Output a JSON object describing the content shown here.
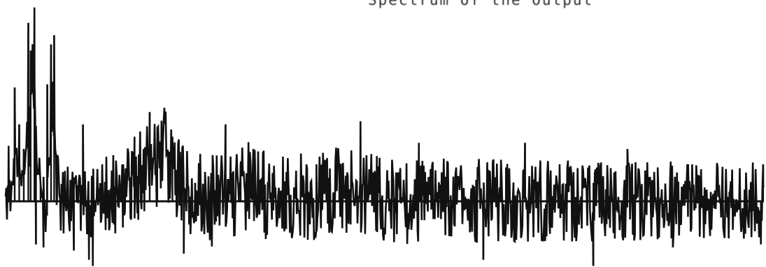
{
  "chart_data": {
    "type": "line",
    "title": "Spectrum of the Output",
    "xlabel": "",
    "ylabel": "",
    "x_range": [
      0,
      1
    ],
    "y_range": [
      -1.0,
      3.2
    ],
    "baseline": 0,
    "grid": false,
    "legend": "none",
    "series": [
      {
        "peaks": [
          {
            "x": 0.001,
            "y": 0.0
          },
          {
            "x": 0.004,
            "y": 0.9
          },
          {
            "x": 0.012,
            "y": 1.85
          },
          {
            "x": 0.018,
            "y": 1.25
          },
          {
            "x": 0.024,
            "y": 0.85
          },
          {
            "x": 0.03,
            "y": 2.9
          },
          {
            "x": 0.033,
            "y": 2.45
          },
          {
            "x": 0.038,
            "y": 3.15
          },
          {
            "x": 0.04,
            "y": -0.7
          },
          {
            "x": 0.046,
            "y": 0.3
          },
          {
            "x": 0.05,
            "y": -0.75
          },
          {
            "x": 0.055,
            "y": 1.9
          },
          {
            "x": 0.06,
            "y": 2.55
          },
          {
            "x": 0.064,
            "y": 2.7
          },
          {
            "x": 0.068,
            "y": 0.55
          },
          {
            "x": 0.078,
            "y": 0.3
          },
          {
            "x": 0.09,
            "y": -0.8
          },
          {
            "x": 0.102,
            "y": 1.25
          },
          {
            "x": 0.11,
            "y": -0.95
          },
          {
            "x": 0.115,
            "y": -1.05
          },
          {
            "x": 0.14,
            "y": 0.5
          },
          {
            "x": 0.155,
            "y": 0.6
          },
          {
            "x": 0.17,
            "y": 1.05
          },
          {
            "x": 0.175,
            "y": -0.3
          },
          {
            "x": 0.19,
            "y": 1.45
          },
          {
            "x": 0.2,
            "y": 1.0
          },
          {
            "x": 0.22,
            "y": 1.05
          },
          {
            "x": 0.235,
            "y": -0.85
          },
          {
            "x": 0.25,
            "y": 0.3
          },
          {
            "x": 0.29,
            "y": 1.25
          },
          {
            "x": 0.31,
            "y": 0.6
          },
          {
            "x": 0.34,
            "y": 0.8
          },
          {
            "x": 0.37,
            "y": -0.45
          },
          {
            "x": 0.41,
            "y": 0.6
          },
          {
            "x": 0.44,
            "y": 0.55
          },
          {
            "x": 0.468,
            "y": 1.3
          },
          {
            "x": 0.49,
            "y": -0.5
          },
          {
            "x": 0.52,
            "y": 0.45
          },
          {
            "x": 0.545,
            "y": 0.95
          },
          {
            "x": 0.58,
            "y": -0.55
          },
          {
            "x": 0.63,
            "y": -0.95
          },
          {
            "x": 0.66,
            "y": 0.55
          },
          {
            "x": 0.685,
            "y": 0.95
          },
          {
            "x": 0.72,
            "y": -0.4
          },
          {
            "x": 0.775,
            "y": -1.05
          },
          {
            "x": 0.82,
            "y": 0.85
          },
          {
            "x": 0.86,
            "y": 0.55
          },
          {
            "x": 0.88,
            "y": -0.75
          },
          {
            "x": 0.9,
            "y": 0.6
          },
          {
            "x": 0.95,
            "y": 0.5
          },
          {
            "x": 0.996,
            "y": -0.7
          },
          {
            "x": 0.999,
            "y": 0.6
          }
        ],
        "noise_amplitude": [
          {
            "x": 0.0,
            "a": 0.25
          },
          {
            "x": 0.07,
            "a": 0.45
          },
          {
            "x": 0.25,
            "a": 0.55
          },
          {
            "x": 0.6,
            "a": 0.5
          },
          {
            "x": 1.0,
            "a": 0.45
          }
        ],
        "color": "#111111"
      }
    ]
  }
}
